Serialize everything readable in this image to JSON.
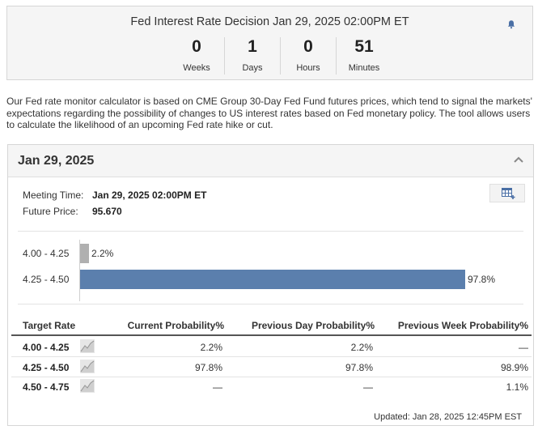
{
  "countdown": {
    "title": "Fed Interest Rate Decision Jan 29, 2025 02:00PM ET",
    "units": [
      {
        "value": "0",
        "label": "Weeks"
      },
      {
        "value": "1",
        "label": "Days"
      },
      {
        "value": "0",
        "label": "Hours"
      },
      {
        "value": "51",
        "label": "Minutes"
      }
    ]
  },
  "description": "Our Fed rate monitor calculator is based on CME Group 30-Day Fed Fund futures prices, which tend to signal the markets' expectations regarding the possibility of changes to US interest rates based on Fed monetary policy. The tool allows users to calculate the likelihood of an upcoming Fed rate hike or cut.",
  "panel": {
    "title": "Jan 29, 2025",
    "meeting_time_label": "Meeting Time:",
    "meeting_time_value": "Jan 29, 2025 02:00PM ET",
    "future_price_label": "Future Price:",
    "future_price_value": "95.670"
  },
  "bars": [
    {
      "label": "4.00 - 4.25",
      "value": 2.2,
      "value_text": "2.2%",
      "color": "#b0b0b0"
    },
    {
      "label": "4.25 - 4.50",
      "value": 97.8,
      "value_text": "97.8%",
      "color": "#5b7fad"
    }
  ],
  "table": {
    "headers": [
      "Target Rate",
      "Current Probability%",
      "Previous Day Probability%",
      "Previous Week Probability%"
    ],
    "rows": [
      {
        "rate": "4.00 - 4.25",
        "current": "2.2%",
        "prev_day": "2.2%",
        "prev_week": "—"
      },
      {
        "rate": "4.25 - 4.50",
        "current": "97.8%",
        "prev_day": "97.8%",
        "prev_week": "98.9%"
      },
      {
        "rate": "4.50 - 4.75",
        "current": "—",
        "prev_day": "—",
        "prev_week": "1.1%"
      }
    ]
  },
  "updated": "Updated: Jan 28, 2025 12:45PM EST",
  "icons": {
    "bell": "bell-icon",
    "collapse": "chevron-up-icon",
    "table": "table-add-icon",
    "spark": "line-chart-icon"
  }
}
